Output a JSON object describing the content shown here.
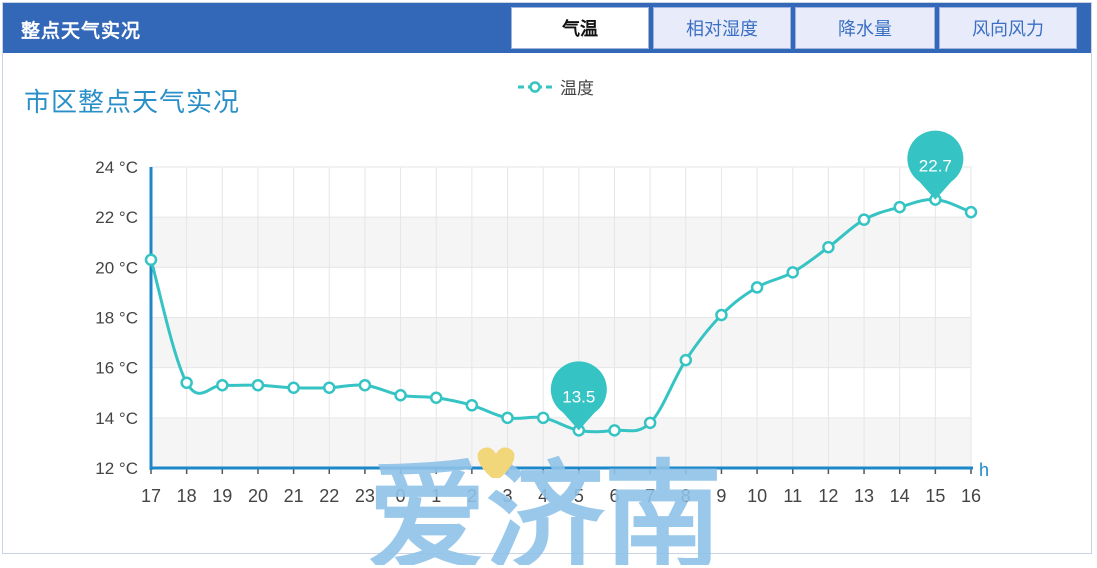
{
  "header": {
    "title": "整点天气实况",
    "tabs": [
      {
        "label": "气温",
        "active": true
      },
      {
        "label": "相对湿度",
        "active": false
      },
      {
        "label": "降水量",
        "active": false
      },
      {
        "label": "风向风力",
        "active": false
      }
    ]
  },
  "colors": {
    "header_bg": "#3368b9",
    "series": "#36c3c4",
    "axis": "#1c87c9",
    "title": "#2a8fc8",
    "grid": "#e6e6e6",
    "band": "#f5f5f5",
    "watermark": "#8ec2e8",
    "heart": "#f2d67a"
  },
  "chart_data": {
    "type": "line",
    "title": "市区整点天气实况",
    "legend": [
      {
        "name": "温度",
        "icon": "line-circle-icon"
      }
    ],
    "legend_position": "top-center",
    "xlabel": "h",
    "ylabel": "",
    "y_unit": "°C",
    "ylim": [
      12,
      24
    ],
    "y_ticks": [
      12,
      14,
      16,
      18,
      20,
      22,
      24
    ],
    "y_tick_labels": [
      "12 °C",
      "14 °C",
      "16 °C",
      "18 °C",
      "20 °C",
      "22 °C",
      "24 °C"
    ],
    "grid": true,
    "categories": [
      "17",
      "18",
      "19",
      "20",
      "21",
      "22",
      "23",
      "0",
      "1",
      "2",
      "3",
      "4",
      "5",
      "6",
      "7",
      "8",
      "9",
      "10",
      "11",
      "12",
      "13",
      "14",
      "15",
      "16"
    ],
    "series": [
      {
        "name": "温度",
        "values": [
          20.3,
          15.4,
          15.3,
          15.3,
          15.2,
          15.2,
          15.3,
          14.9,
          14.8,
          14.5,
          14.0,
          14.0,
          13.5,
          13.5,
          13.8,
          16.3,
          18.1,
          19.2,
          19.8,
          20.8,
          21.9,
          22.4,
          22.7,
          22.2
        ]
      }
    ],
    "annotations": [
      {
        "type": "min",
        "category": "5",
        "value": 13.5,
        "label": "13.5"
      },
      {
        "type": "max",
        "category": "15",
        "value": 22.7,
        "label": "22.7"
      }
    ]
  },
  "watermark": {
    "text": "爱济南"
  }
}
